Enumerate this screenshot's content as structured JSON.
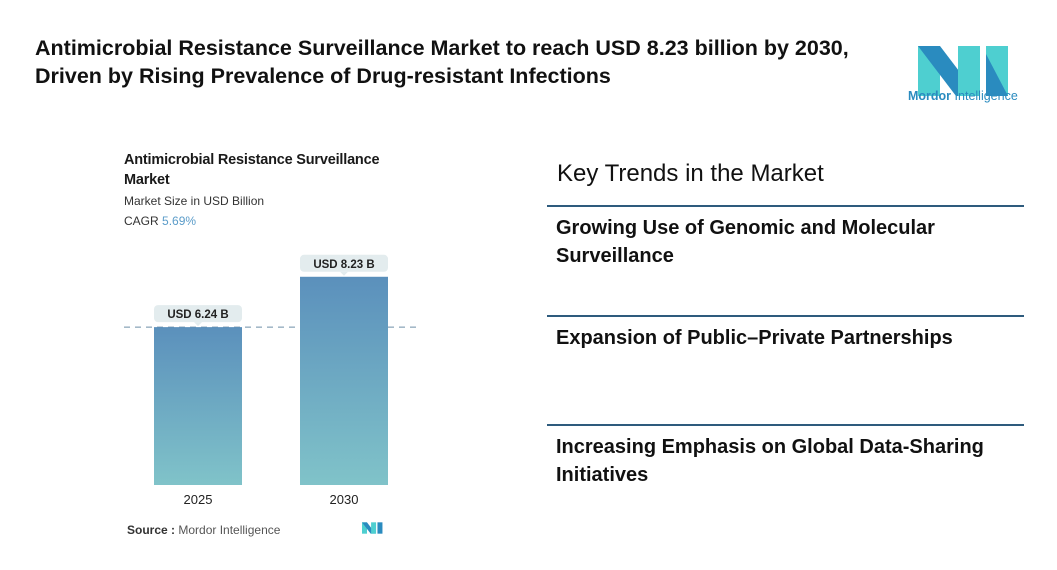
{
  "headline": "Antimicrobial Resistance Surveillance Market to reach USD 8.23 billion by 2030, Driven by Rising Prevalence of Drug-resistant Infections",
  "logo": {
    "text_bold": "Mordor",
    "text_regular": "Intelligence",
    "colors": [
      "#2a8bbf",
      "#4ecfd0"
    ]
  },
  "chart_data": {
    "type": "bar",
    "title": "Antimicrobial Resistance Surveillance Market",
    "subtitle": "Market Size in USD Billion",
    "cagr_label": "CAGR",
    "cagr_value": "5.69%",
    "categories": [
      "2025",
      "2030"
    ],
    "values": [
      6.24,
      8.23
    ],
    "data_labels": [
      "USD 6.24 B",
      "USD 8.23 B"
    ],
    "ylim": [
      0,
      8.3
    ],
    "grid": false,
    "reference_line": 6.24,
    "colors": {
      "bar_top": "#5b90bc",
      "bar_bottom": "#80c3c9",
      "label_bg": "#e3ecee"
    }
  },
  "source": {
    "label": "Source :",
    "value": "Mordor Intelligence"
  },
  "trends": {
    "title": "Key Trends in the Market",
    "items": [
      "Growing Use of Genomic and Molecular Surveillance",
      "Expansion of Public–Private Partnerships",
      "Increasing Emphasis on Global Data-Sharing Initiatives"
    ]
  }
}
